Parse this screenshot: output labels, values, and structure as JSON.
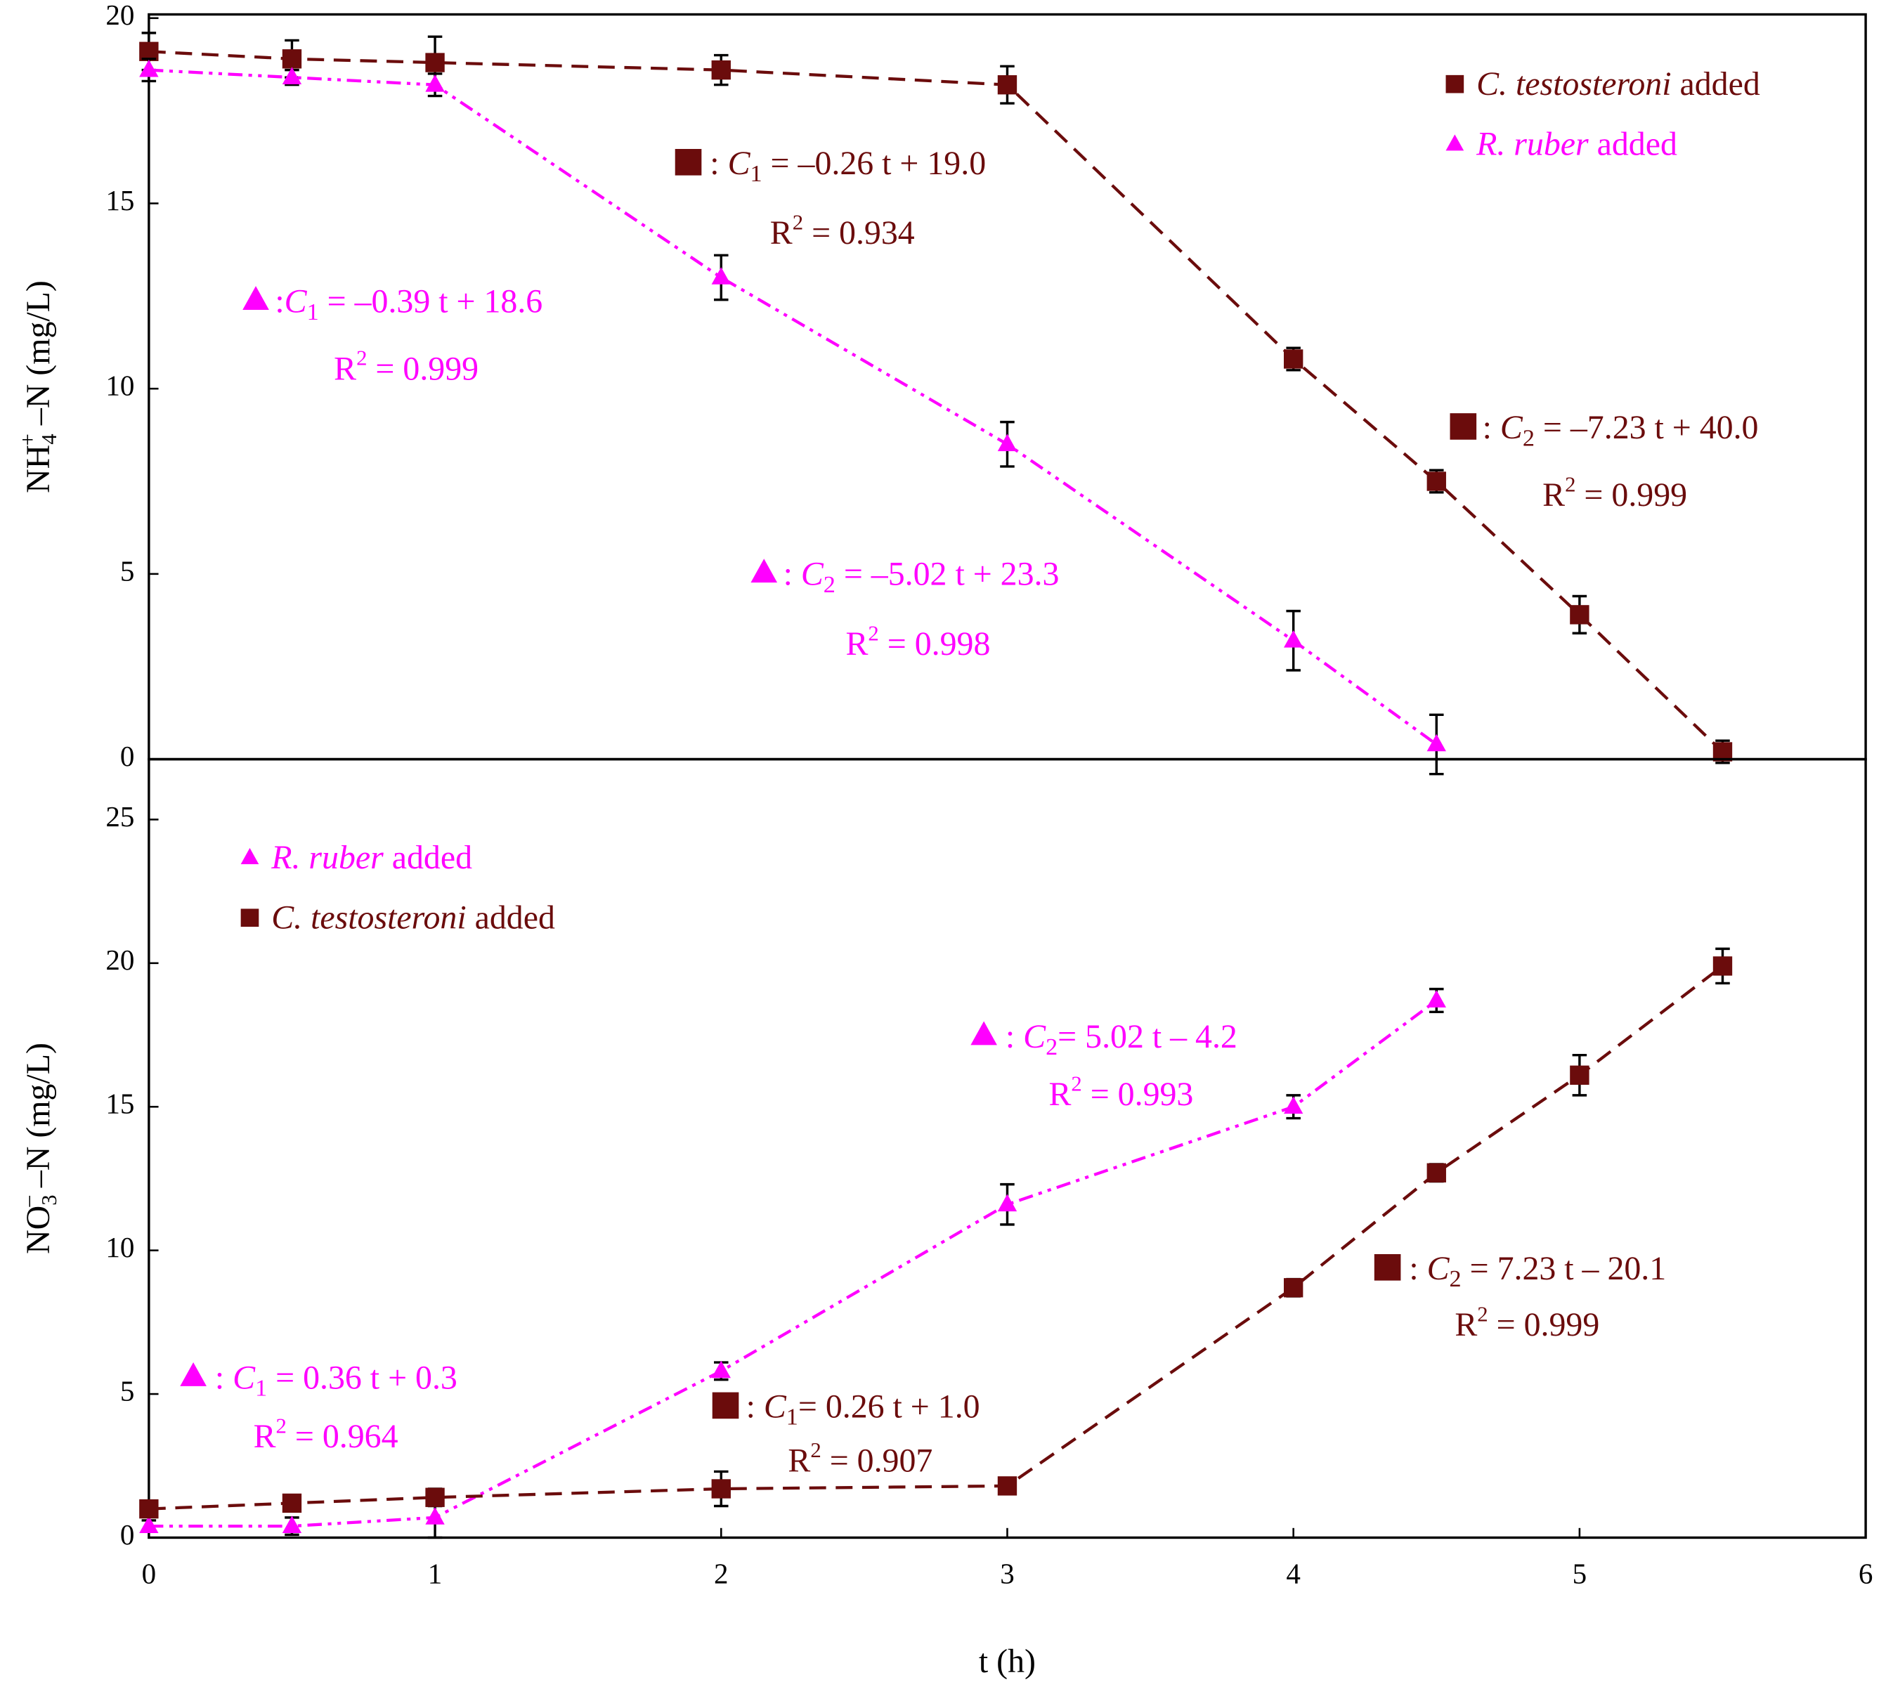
{
  "chart_data": [
    {
      "type": "line",
      "ylabel": {
        "base": "NH",
        "sub": "4",
        "sup": "+",
        "rest": " –N (mg/L)"
      },
      "xlim": [
        0,
        6
      ],
      "ylim": [
        0,
        20.1
      ],
      "yticks": [
        0,
        5,
        10,
        15,
        20
      ],
      "legend": "upper right",
      "series": [
        {
          "name": "C. testosteroni",
          "legend_suffix": " added",
          "color": "#6b0c0c",
          "marker": "square",
          "line_style": "dashed",
          "x": [
            0,
            0.5,
            1,
            2,
            3,
            4,
            4.5,
            5,
            5.5
          ],
          "values": [
            19.1,
            18.9,
            18.8,
            18.6,
            18.2,
            10.8,
            7.5,
            3.9,
            0.2
          ],
          "errors": [
            0.5,
            0.5,
            0.7,
            0.4,
            0.5,
            0.3,
            0.3,
            0.5,
            0.3
          ]
        },
        {
          "name": "R. ruber",
          "legend_suffix": " added",
          "color": "#ff00ff",
          "marker": "triangle",
          "line_style": "dash-dot-dot",
          "x": [
            0,
            0.5,
            1,
            2,
            3,
            4,
            4.5
          ],
          "values": [
            18.6,
            18.4,
            18.2,
            13.0,
            8.5,
            3.2,
            0.4
          ],
          "errors": [
            0.3,
            0.2,
            0.3,
            0.6,
            0.6,
            0.8,
            0.8
          ]
        }
      ],
      "annotations": [
        {
          "series": 0,
          "prefix": ": ",
          "var": "C",
          "sub": "1",
          "rhs": " = –0.26 t + 19.0",
          "r_var": "R",
          "r_sup": "2",
          "r_rhs": " = 0.934"
        },
        {
          "series": 1,
          "prefix": ":",
          "var": "C",
          "sub": "1",
          "rhs": " = –0.39 t + 18.6",
          "r_var": "R",
          "r_sup": "2",
          "r_rhs": " = 0.999"
        },
        {
          "series": 0,
          "prefix": ": ",
          "var": "C",
          "sub": "2",
          "rhs": " = –7.23 t + 40.0",
          "r_var": "R",
          "r_sup": "2",
          "r_rhs": " = 0.999"
        },
        {
          "series": 1,
          "prefix": ": ",
          "var": "C",
          "sub": "2",
          "rhs": " = –5.02 t + 23.3",
          "r_var": "R",
          "r_sup": "2",
          "r_rhs": " = 0.998"
        }
      ]
    },
    {
      "type": "line",
      "ylabel": {
        "base": "NO",
        "sub": "3",
        "sup": "–",
        "rest": " –N (mg/L)"
      },
      "xlabel": "t (h)",
      "xlim": [
        0,
        6
      ],
      "xticks": [
        0,
        1,
        2,
        3,
        4,
        5,
        6
      ],
      "ylim": [
        0,
        27.1
      ],
      "yticks": [
        0,
        5,
        10,
        15,
        20,
        25
      ],
      "legend": "upper left",
      "series": [
        {
          "name": "R. ruber",
          "legend_suffix": " added",
          "color": "#ff00ff",
          "marker": "triangle",
          "line_style": "dash-dot-dot",
          "x": [
            0,
            0.5,
            1,
            2,
            3,
            4,
            4.5
          ],
          "values": [
            0.4,
            0.4,
            0.7,
            5.8,
            11.6,
            15.0,
            18.7
          ],
          "errors": [
            0.2,
            0.3,
            0.7,
            0.3,
            0.7,
            0.4,
            0.4
          ]
        },
        {
          "name": "C. testosteroni",
          "legend_suffix": " added",
          "color": "#6b0c0c",
          "marker": "square",
          "line_style": "dashed",
          "x": [
            0,
            0.5,
            1,
            2,
            3,
            4,
            4.5,
            5,
            5.5
          ],
          "values": [
            1.0,
            1.2,
            1.4,
            1.7,
            1.8,
            8.7,
            12.7,
            16.1,
            19.9
          ],
          "errors": [
            0.2,
            0.2,
            0.3,
            0.6,
            0.2,
            0.3,
            0.3,
            0.7,
            0.6
          ]
        }
      ],
      "annotations": [
        {
          "series": 0,
          "prefix": ": ",
          "var": "C",
          "sub": "2",
          "rhs": "= 5.02 t – 4.2",
          "r_var": "R",
          "r_sup": "2",
          "r_rhs": " = 0.993"
        },
        {
          "series": 0,
          "prefix": ": ",
          "var": "C",
          "sub": "1",
          "rhs": " = 0.36 t + 0.3",
          "r_var": "R",
          "r_sup": "2",
          "r_rhs": " = 0.964"
        },
        {
          "series": 1,
          "prefix": ": ",
          "var": "C",
          "sub": "1",
          "rhs": "= 0.26 t + 1.0",
          "r_var": "R",
          "r_sup": "2",
          "r_rhs": " = 0.907"
        },
        {
          "series": 1,
          "prefix": ": ",
          "var": "C",
          "sub": "2",
          "rhs": " = 7.23 t – 20.1",
          "r_var": "R",
          "r_sup": "2",
          "r_rhs": " = 0.999"
        }
      ]
    }
  ]
}
